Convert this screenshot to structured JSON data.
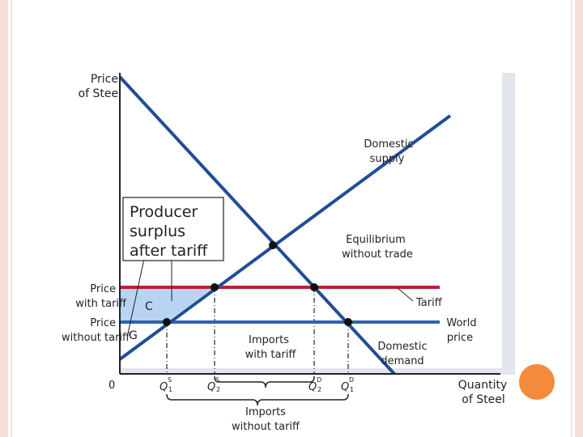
{
  "y_axis_label": [
    "Price",
    "of Steel"
  ],
  "x_axis_label": [
    "Quantity",
    "of Steel"
  ],
  "origin_label": "0",
  "supply_label": [
    "Domestic",
    "supply"
  ],
  "demand_label": [
    "Domestic",
    "demand"
  ],
  "equilibrium_label": [
    "Equilibrium",
    "without trade"
  ],
  "producer_surplus_label": [
    "Producer",
    "surplus",
    "after tariff"
  ],
  "price_with_tariff_label": [
    "Price",
    "with tariff"
  ],
  "price_without_tariff_label": [
    "Price",
    "without tariff"
  ],
  "tariff_label": "Tariff",
  "world_price_label": [
    "World",
    "price"
  ],
  "area_c_label": "C",
  "area_g_label": "G",
  "imports_with_tariff_label": [
    "Imports",
    "with tariff"
  ],
  "imports_without_tariff_label": [
    "Imports",
    "without tariff"
  ],
  "quantity_labels": [
    {
      "main": "Q",
      "sup": "S",
      "sub": "1"
    },
    {
      "main": "Q",
      "sup": "S",
      "sub": "2"
    },
    {
      "main": "Q",
      "sup": "D",
      "sub": "2"
    },
    {
      "main": "Q",
      "sup": "D",
      "sub": "1"
    }
  ],
  "colors": {
    "supply_demand": "#1f4e96",
    "tariff_line": "#b32234",
    "world_price_line": "#2d63b5",
    "producer_surplus_fill": "#b9d3f3",
    "accent_circle": "#f58a3c",
    "frame": "#f6e1da",
    "plot_shadow": "#dfe3ea"
  }
}
